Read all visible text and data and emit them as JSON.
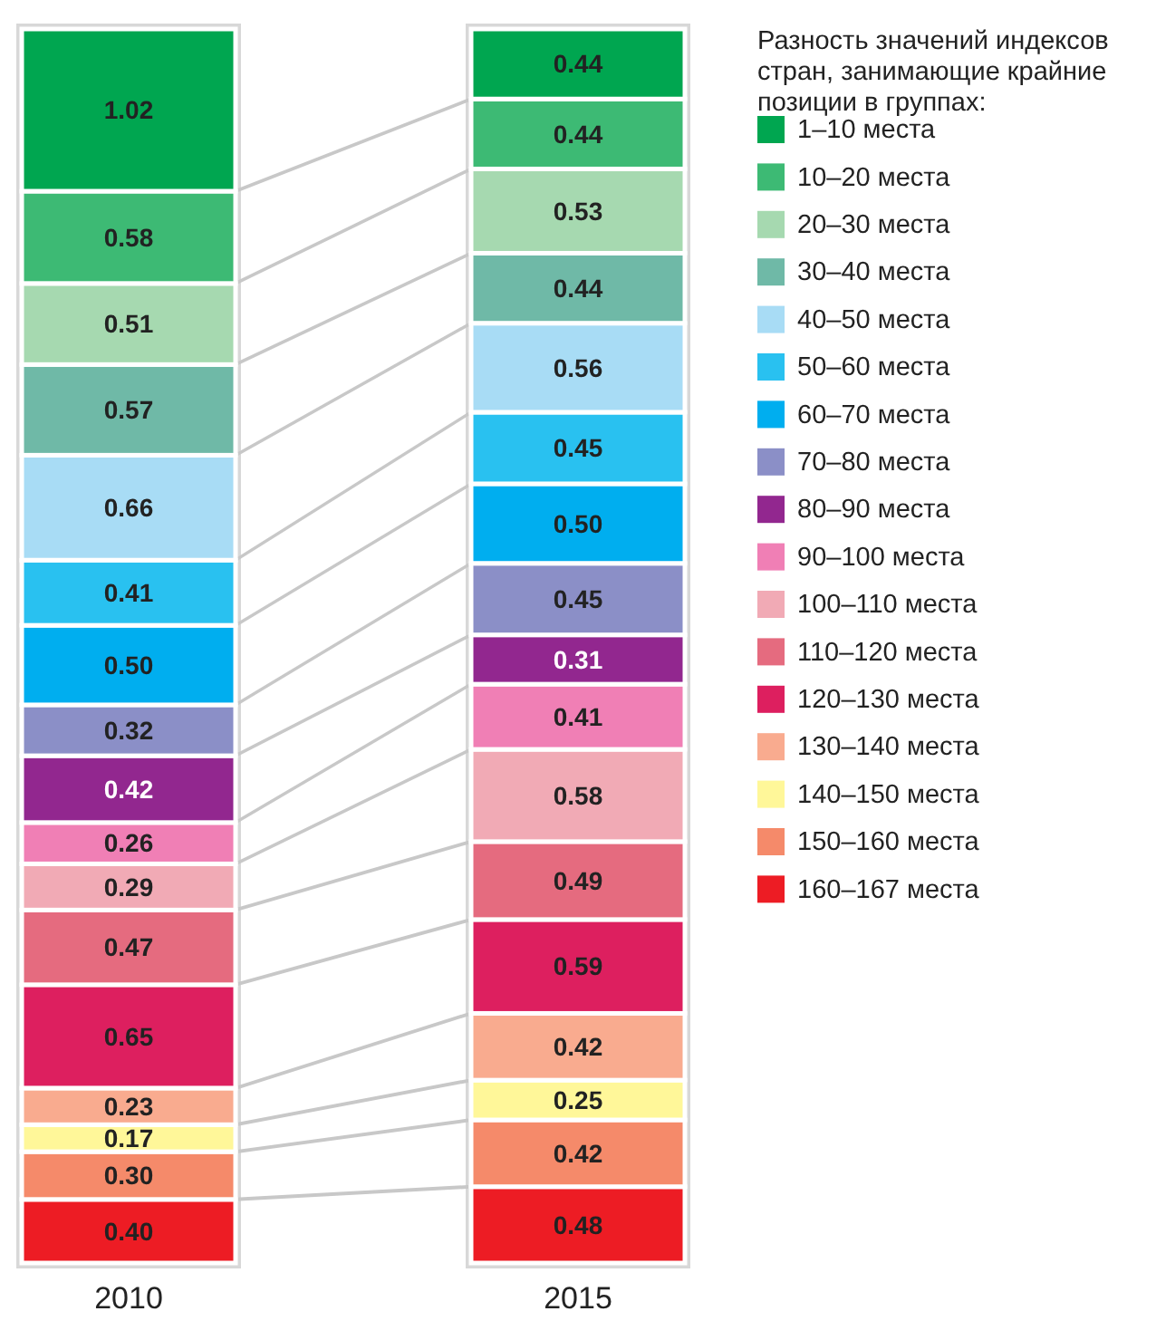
{
  "chart_data": {
    "type": "bar",
    "stacked": true,
    "legend": "right",
    "legend_title": "Разность значений индексов стран, занимающие крайние позиции в группах:",
    "categories": [
      "2010",
      "2015"
    ],
    "series": [
      {
        "name": "160–167 места",
        "color": "#ed1c24",
        "values": [
          0.4,
          0.48
        ],
        "value_labels": [
          "0.40",
          "0.48"
        ]
      },
      {
        "name": "150–160 места",
        "color": "#f58a6a",
        "values": [
          0.3,
          0.42
        ],
        "value_labels": [
          "0.30",
          "0.42"
        ]
      },
      {
        "name": "140–150 места",
        "color": "#fff799",
        "values": [
          0.17,
          0.25
        ],
        "value_labels": [
          "0.17",
          "0.25"
        ]
      },
      {
        "name": "130–140 места",
        "color": "#f9ab8f",
        "values": [
          0.23,
          0.42
        ],
        "value_labels": [
          "0.23",
          "0.42"
        ]
      },
      {
        "name": "120–130 места",
        "color": "#dd1f5f",
        "values": [
          0.65,
          0.59
        ],
        "value_labels": [
          "0.65",
          "0.59"
        ]
      },
      {
        "name": "110–120 места",
        "color": "#e56b7f",
        "values": [
          0.47,
          0.49
        ],
        "value_labels": [
          "0.47",
          "0.49"
        ]
      },
      {
        "name": "100–110 места",
        "color": "#f1aab5",
        "values": [
          0.29,
          0.58
        ],
        "value_labels": [
          "0.29",
          "0.58"
        ]
      },
      {
        "name": "90–100 места",
        "color": "#f07fb5",
        "values": [
          0.26,
          0.41
        ],
        "value_labels": [
          "0.26",
          "0.41"
        ]
      },
      {
        "name": "80–90 места",
        "color": "#92278f",
        "values": [
          0.42,
          0.31
        ],
        "value_labels": [
          "0.42",
          "0.31"
        ]
      },
      {
        "name": "70–80 места",
        "color": "#8b8fc7",
        "values": [
          0.32,
          0.45
        ],
        "value_labels": [
          "0.32",
          "0.45"
        ]
      },
      {
        "name": "60–70 места",
        "color": "#00aeef",
        "values": [
          0.5,
          0.5
        ],
        "value_labels": [
          "0.50",
          "0.50"
        ]
      },
      {
        "name": "50–60 места",
        "color": "#29c1f0",
        "values": [
          0.41,
          0.45
        ],
        "value_labels": [
          "0.41",
          "0.45"
        ]
      },
      {
        "name": "40–50 места",
        "color": "#a8dcf5",
        "values": [
          0.66,
          0.56
        ],
        "value_labels": [
          "0.66",
          "0.56"
        ]
      },
      {
        "name": "30–40 места",
        "color": "#6fb9a7",
        "values": [
          0.57,
          0.44
        ],
        "value_labels": [
          "0.57",
          "0.44"
        ]
      },
      {
        "name": "20–30 места",
        "color": "#a6d9b0",
        "values": [
          0.51,
          0.53
        ],
        "value_labels": [
          "0.51",
          "0.53"
        ]
      },
      {
        "name": "10–20 места",
        "color": "#3dba74",
        "values": [
          0.58,
          0.44
        ],
        "value_labels": [
          "0.58",
          "0.44"
        ]
      },
      {
        "name": "1–10 места",
        "color": "#00a650",
        "values": [
          1.02,
          0.44
        ],
        "value_labels": [
          "1.02",
          "0.44"
        ]
      }
    ]
  }
}
